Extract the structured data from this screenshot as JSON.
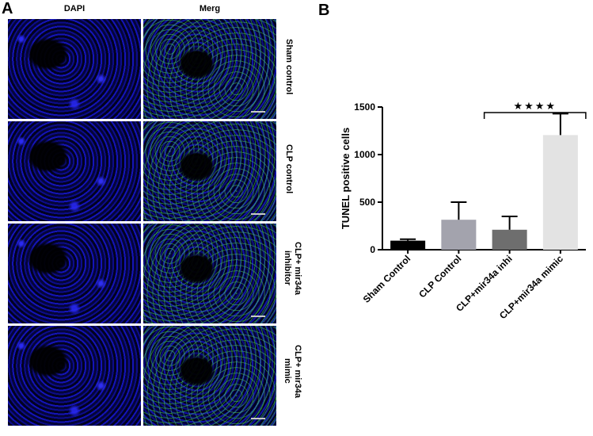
{
  "panel_a": {
    "letter": "A",
    "columns": [
      "DAPI",
      "Merg"
    ],
    "rows": [
      {
        "label": "Sham control"
      },
      {
        "label": "CLP control"
      },
      {
        "label": "CLP+ mir34a inhibitor"
      },
      {
        "label": "CLP+ mir34a mimic"
      }
    ]
  },
  "panel_b": {
    "letter": "B"
  },
  "chart_data": {
    "type": "bar",
    "categories": [
      "Sham Control",
      "CLP Control",
      "CLP+mir34a inhi",
      "CLP+mir34a mimic"
    ],
    "values": [
      95,
      315,
      210,
      1205
    ],
    "errors": [
      15,
      185,
      140,
      225
    ],
    "colors": [
      "#000000",
      "#a3a3ad",
      "#6e6e6e",
      "#e3e3e3"
    ],
    "ylabel": "TUNEL positive cells",
    "xlabel": "",
    "ylim": [
      0,
      1500
    ],
    "yticks": [
      0,
      500,
      1000,
      1500
    ],
    "significance": {
      "from": 2,
      "to": 3,
      "label": "★★★★"
    },
    "grid": false
  }
}
